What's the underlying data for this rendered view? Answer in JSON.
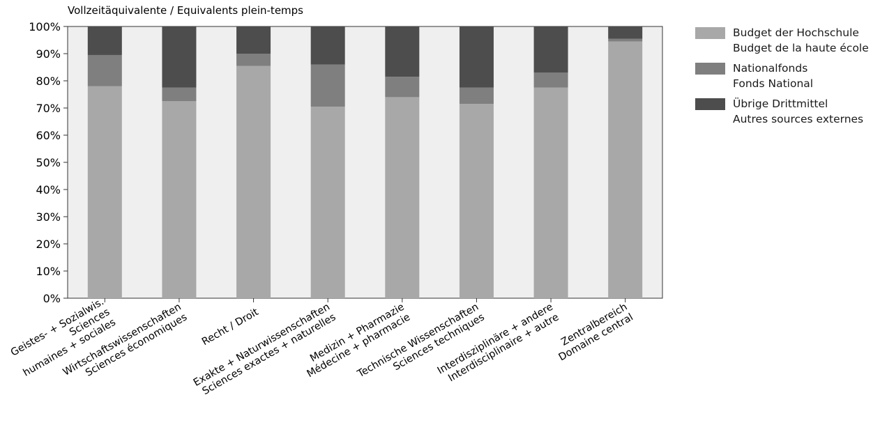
{
  "chart_data": {
    "type": "bar",
    "stacked": true,
    "percent_stacked": true,
    "ylabel": "Vollzeitäquivalente / Equivalents plein-temps",
    "y_ticks": [
      "0%",
      "10%",
      "20%",
      "30%",
      "40%",
      "50%",
      "60%",
      "70%",
      "80%",
      "90%",
      "100%"
    ],
    "ylim": [
      0,
      100
    ],
    "grid": false,
    "legend_position": "right",
    "categories": [
      [
        "Geistes- + Sozialwis.",
        "Sciences",
        "humaines + sociales"
      ],
      [
        "Wirtschaftswissenschaften",
        "Sciences économiques"
      ],
      [
        "Recht / Droit"
      ],
      [
        "Exakte + Naturwissenschaften",
        "Sciences exactes + naturelles"
      ],
      [
        "Medizin + Pharmazie",
        "Médecine + pharmacie"
      ],
      [
        "Technische Wissenschaften",
        "Sciences techniques"
      ],
      [
        "Interdisziplinäre + andere",
        "Interdisciplinaire + autre"
      ],
      [
        "Zentralbereich",
        "Domaine central"
      ]
    ],
    "series": [
      {
        "name": [
          "Budget der Hochschule",
          "Budget de la haute école"
        ],
        "color": "#a8a8a8",
        "values": [
          78,
          72.5,
          85.5,
          70.5,
          74,
          71.5,
          77.5,
          94.5
        ]
      },
      {
        "name": [
          "Nationalfonds",
          "Fonds National"
        ],
        "color": "#7f7f7f",
        "values": [
          11.5,
          5,
          4.5,
          15.5,
          7.5,
          6,
          5.5,
          1
        ]
      },
      {
        "name": [
          "Übrige Drittmittel",
          "Autres sources externes"
        ],
        "color": "#4d4d4d",
        "values": [
          10.5,
          22.5,
          10,
          14,
          18.5,
          22.5,
          17,
          4.5
        ]
      }
    ]
  },
  "colors": {
    "plot_background": "#efefef",
    "axis": "#333333"
  }
}
